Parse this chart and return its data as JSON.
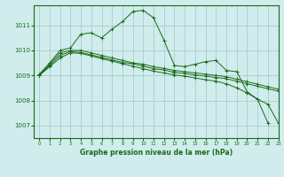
{
  "background_color": "#d0ecec",
  "grid_color": "#a0c8c8",
  "line_color": "#1a6b1a",
  "title": "Graphe pression niveau de la mer (hPa)",
  "xlim": [
    -0.5,
    23
  ],
  "ylim": [
    1006.5,
    1011.8
  ],
  "yticks": [
    1007,
    1008,
    1009,
    1010,
    1011
  ],
  "xticks": [
    0,
    1,
    2,
    3,
    4,
    5,
    6,
    7,
    8,
    9,
    10,
    11,
    12,
    13,
    14,
    15,
    16,
    17,
    18,
    19,
    20,
    21,
    22,
    23
  ],
  "s1_x": [
    0,
    1,
    2,
    3,
    4,
    5,
    6,
    7,
    8,
    9,
    10,
    11,
    12,
    13,
    14,
    15,
    16,
    17,
    18,
    19,
    20,
    21,
    22
  ],
  "s1_y": [
    1009.05,
    1009.5,
    1010.0,
    1010.1,
    1010.65,
    1010.7,
    1010.5,
    1010.85,
    1011.15,
    1011.55,
    1011.6,
    1011.3,
    1010.4,
    1009.4,
    1009.35,
    1009.45,
    1009.55,
    1009.6,
    1009.2,
    1009.15,
    1008.35,
    1008.05,
    1007.1
  ],
  "s2_x": [
    0,
    1,
    2,
    3,
    4,
    5,
    6,
    7,
    8,
    9,
    10,
    11,
    12,
    13,
    14,
    15,
    16,
    17,
    18,
    19,
    20,
    21,
    22,
    23
  ],
  "s2_y": [
    1009.0,
    1009.45,
    1009.9,
    1010.0,
    1010.0,
    1009.9,
    1009.8,
    1009.7,
    1009.6,
    1009.5,
    1009.45,
    1009.35,
    1009.28,
    1009.2,
    1009.15,
    1009.1,
    1009.05,
    1009.0,
    1008.95,
    1008.85,
    1008.75,
    1008.65,
    1008.55,
    1008.45
  ],
  "s3_x": [
    0,
    1,
    2,
    3,
    4,
    5,
    6,
    7,
    8,
    9,
    10,
    11,
    12,
    13,
    14,
    15,
    16,
    17,
    18,
    19,
    20,
    21,
    22,
    23
  ],
  "s3_y": [
    1009.0,
    1009.4,
    1009.8,
    1009.95,
    1009.92,
    1009.82,
    1009.72,
    1009.62,
    1009.52,
    1009.47,
    1009.37,
    1009.27,
    1009.22,
    1009.12,
    1009.08,
    1009.02,
    1008.97,
    1008.92,
    1008.87,
    1008.77,
    1008.67,
    1008.57,
    1008.47,
    1008.37
  ],
  "s4_x": [
    0,
    1,
    2,
    3,
    4,
    5,
    6,
    7,
    8,
    9,
    10,
    11,
    12,
    13,
    14,
    15,
    16,
    17,
    18,
    19,
    20,
    21,
    22,
    23
  ],
  "s4_y": [
    1009.0,
    1009.35,
    1009.7,
    1009.9,
    1009.88,
    1009.78,
    1009.67,
    1009.57,
    1009.47,
    1009.37,
    1009.27,
    1009.17,
    1009.1,
    1009.02,
    1008.97,
    1008.9,
    1008.83,
    1008.77,
    1008.67,
    1008.5,
    1008.3,
    1008.05,
    1007.85,
    1007.1
  ]
}
